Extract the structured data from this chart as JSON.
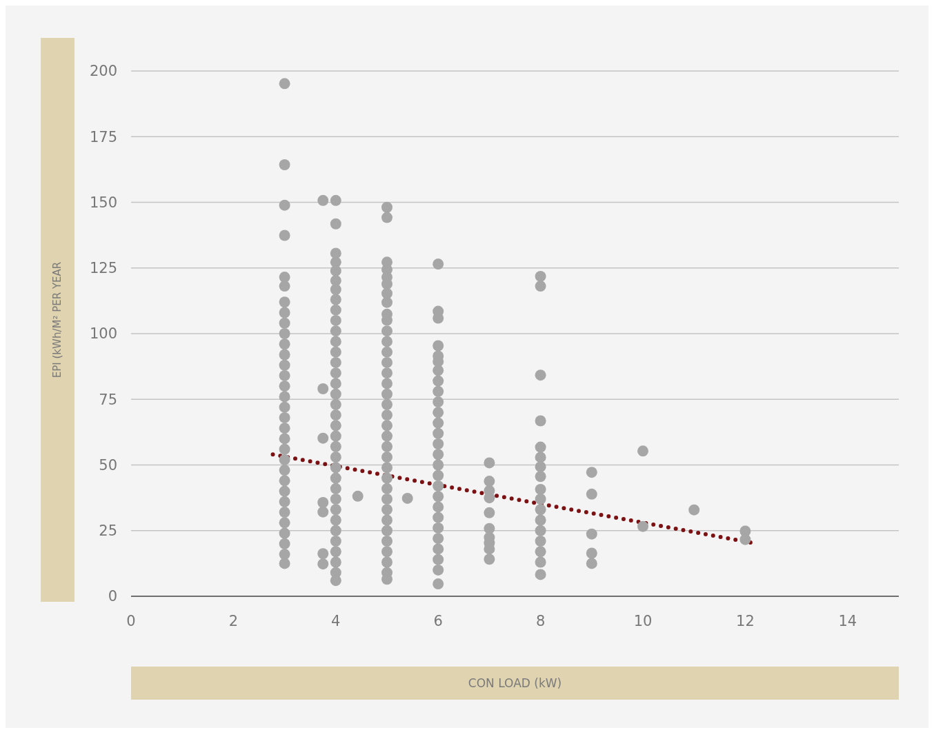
{
  "chart_data": {
    "type": "scatter",
    "xlabel": "CON LOAD (kW)",
    "ylabel": "EPI (kWh/M² PER YEAR",
    "xlim": [
      0,
      15
    ],
    "xticks": [
      0,
      2,
      4,
      6,
      8,
      10,
      12,
      14
    ],
    "ylim": [
      0,
      200
    ],
    "yticks": [
      0,
      25,
      50,
      75,
      100,
      125,
      150,
      175,
      200
    ],
    "grid": "y",
    "marker": "circle",
    "series": [
      {
        "type": "scatter",
        "color": "#a6a6a7",
        "x": [
          3,
          3,
          3,
          3,
          3,
          3,
          3,
          3,
          3,
          3,
          3,
          3,
          3,
          3,
          3,
          3,
          3,
          3,
          3,
          3,
          3,
          3,
          3,
          3,
          3,
          3,
          3,
          3,
          3,
          3,
          3,
          3
        ],
        "values": [
          195.2,
          164.3,
          148.9,
          137.4,
          121.5,
          118.1,
          112,
          108,
          104,
          100,
          96,
          92,
          88,
          84,
          80,
          76,
          72,
          68,
          64,
          60,
          56,
          52,
          48,
          44,
          40,
          36,
          32,
          28,
          24,
          20,
          16,
          12.5
        ]
      },
      {
        "type": "scatter",
        "color": "#a6a6a7",
        "x": [
          3.75,
          3.75,
          3.75,
          3.75,
          3.75,
          3.75,
          3.75,
          4.43,
          5.4
        ],
        "values": [
          150.7,
          79,
          60.2,
          35.7,
          32.1,
          16.2,
          12.3,
          38.1,
          37.3
        ]
      },
      {
        "type": "scatter",
        "color": "#a6a6a7",
        "x": [
          4,
          4,
          4,
          4,
          4,
          4,
          4,
          4,
          4,
          4,
          4,
          4,
          4,
          4,
          4,
          4,
          4,
          4,
          4,
          4,
          4,
          4,
          4,
          4,
          4,
          4,
          4,
          4,
          4,
          4,
          4,
          4,
          4,
          4,
          4
        ],
        "values": [
          150.7,
          141.8,
          130.6,
          127.2,
          123.9,
          120.2,
          116.8,
          113,
          109,
          105,
          101,
          97,
          93,
          89,
          85,
          81,
          77,
          73,
          69,
          65,
          61,
          57,
          53,
          49,
          45,
          41,
          37,
          33,
          29,
          25,
          21,
          17,
          13,
          9,
          6
        ]
      },
      {
        "type": "scatter",
        "color": "#a6a6a7",
        "x": [
          5,
          5,
          5,
          5,
          5,
          5,
          5,
          5,
          5,
          5,
          5,
          5,
          5,
          5,
          5,
          5,
          5,
          5,
          5,
          5,
          5,
          5,
          5,
          5,
          5,
          5,
          5,
          5,
          5,
          5,
          5,
          5,
          5,
          5,
          5
        ],
        "values": [
          148.1,
          144.2,
          127.2,
          124.4,
          121.5,
          118.9,
          115.3,
          111.9,
          107.4,
          105.1,
          101,
          97,
          93,
          89,
          85,
          81,
          77,
          73,
          69,
          65,
          61,
          57,
          53,
          49,
          45,
          41,
          37,
          33,
          29,
          25,
          21,
          17,
          13,
          9,
          6.5
        ]
      },
      {
        "type": "scatter",
        "color": "#a6a6a7",
        "x": [
          6,
          6,
          6,
          6,
          6,
          6,
          6,
          6,
          6,
          6,
          6,
          6,
          6,
          6,
          6,
          6,
          6,
          6,
          6,
          6,
          6,
          6,
          6,
          6,
          6,
          6,
          6
        ],
        "values": [
          126.5,
          108.5,
          105.9,
          95.4,
          91.5,
          89.4,
          86,
          82,
          78,
          74,
          70,
          66,
          62,
          58,
          54,
          50,
          46,
          42,
          38,
          34,
          30,
          26,
          22,
          18,
          14,
          10,
          4.7
        ]
      },
      {
        "type": "scatter",
        "color": "#a6a6a7",
        "x": [
          7,
          7,
          7,
          7,
          7,
          7,
          7,
          7,
          7,
          7
        ],
        "values": [
          50.8,
          43.8,
          40.2,
          37.5,
          31.8,
          25.8,
          22.4,
          20.3,
          18,
          14.1
        ]
      },
      {
        "type": "scatter",
        "color": "#a6a6a7",
        "x": [
          8,
          8,
          8,
          8,
          8,
          8,
          8,
          8,
          8,
          8,
          8,
          8,
          8,
          8,
          8,
          8,
          8
        ],
        "values": [
          121.8,
          118.1,
          84.2,
          66.8,
          56.8,
          52.9,
          49.3,
          45.6,
          40.7,
          37,
          33,
          29,
          25,
          21,
          17,
          13,
          8.3
        ]
      },
      {
        "type": "scatter",
        "color": "#a6a6a7",
        "x": [
          9,
          9,
          9,
          9,
          9,
          10,
          10,
          11,
          12,
          12
        ],
        "values": [
          47.2,
          38.9,
          23.7,
          16.4,
          12.5,
          55.3,
          26.6,
          32.9,
          24.8,
          21.6
        ]
      },
      {
        "type": "line",
        "color": "#7b1113",
        "line_style": "dotted",
        "marker": "none",
        "x": [
          2.77,
          12.2
        ],
        "values": [
          54,
          20.1
        ]
      }
    ]
  }
}
